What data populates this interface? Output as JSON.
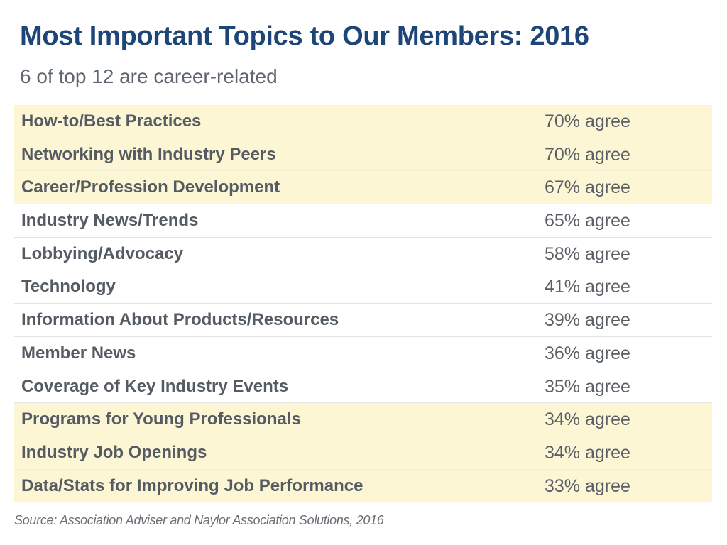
{
  "title": "Most Important Topics to Our Members: 2016",
  "subtitle": "6 of top 12 are career-related",
  "source": "Source: Association Adviser and Naylor Association Solutions, 2016",
  "colors": {
    "title": "#1e4578",
    "highlight_row": "#fdf6d4",
    "text": "#555b63"
  },
  "chart_data": {
    "type": "table",
    "title": "Most Important Topics to Our Members: 2016",
    "subtitle": "6 of top 12 are career-related",
    "value_suffix": "% agree",
    "rows": [
      {
        "topic": "How-to/Best Practices",
        "value": 70,
        "label": "70% agree",
        "highlighted": true
      },
      {
        "topic": "Networking with Industry Peers",
        "value": 70,
        "label": "70% agree",
        "highlighted": true
      },
      {
        "topic": "Career/Profession Development",
        "value": 67,
        "label": "67% agree",
        "highlighted": true
      },
      {
        "topic": "Industry News/Trends",
        "value": 65,
        "label": "65% agree",
        "highlighted": false
      },
      {
        "topic": "Lobbying/Advocacy",
        "value": 58,
        "label": "58% agree",
        "highlighted": false
      },
      {
        "topic": "Technology",
        "value": 41,
        "label": "41% agree",
        "highlighted": false
      },
      {
        "topic": "Information About Products/Resources",
        "value": 39,
        "label": "39% agree",
        "highlighted": false
      },
      {
        "topic": "Member News",
        "value": 36,
        "label": "36% agree",
        "highlighted": false
      },
      {
        "topic": "Coverage of Key Industry Events",
        "value": 35,
        "label": "35% agree",
        "highlighted": false
      },
      {
        "topic": "Programs for Young Professionals",
        "value": 34,
        "label": "34% agree",
        "highlighted": true
      },
      {
        "topic": "Industry Job Openings",
        "value": 34,
        "label": "34% agree",
        "highlighted": true
      },
      {
        "topic": "Data/Stats for Improving Job Performance",
        "value": 33,
        "label": "33% agree",
        "highlighted": true
      }
    ]
  }
}
